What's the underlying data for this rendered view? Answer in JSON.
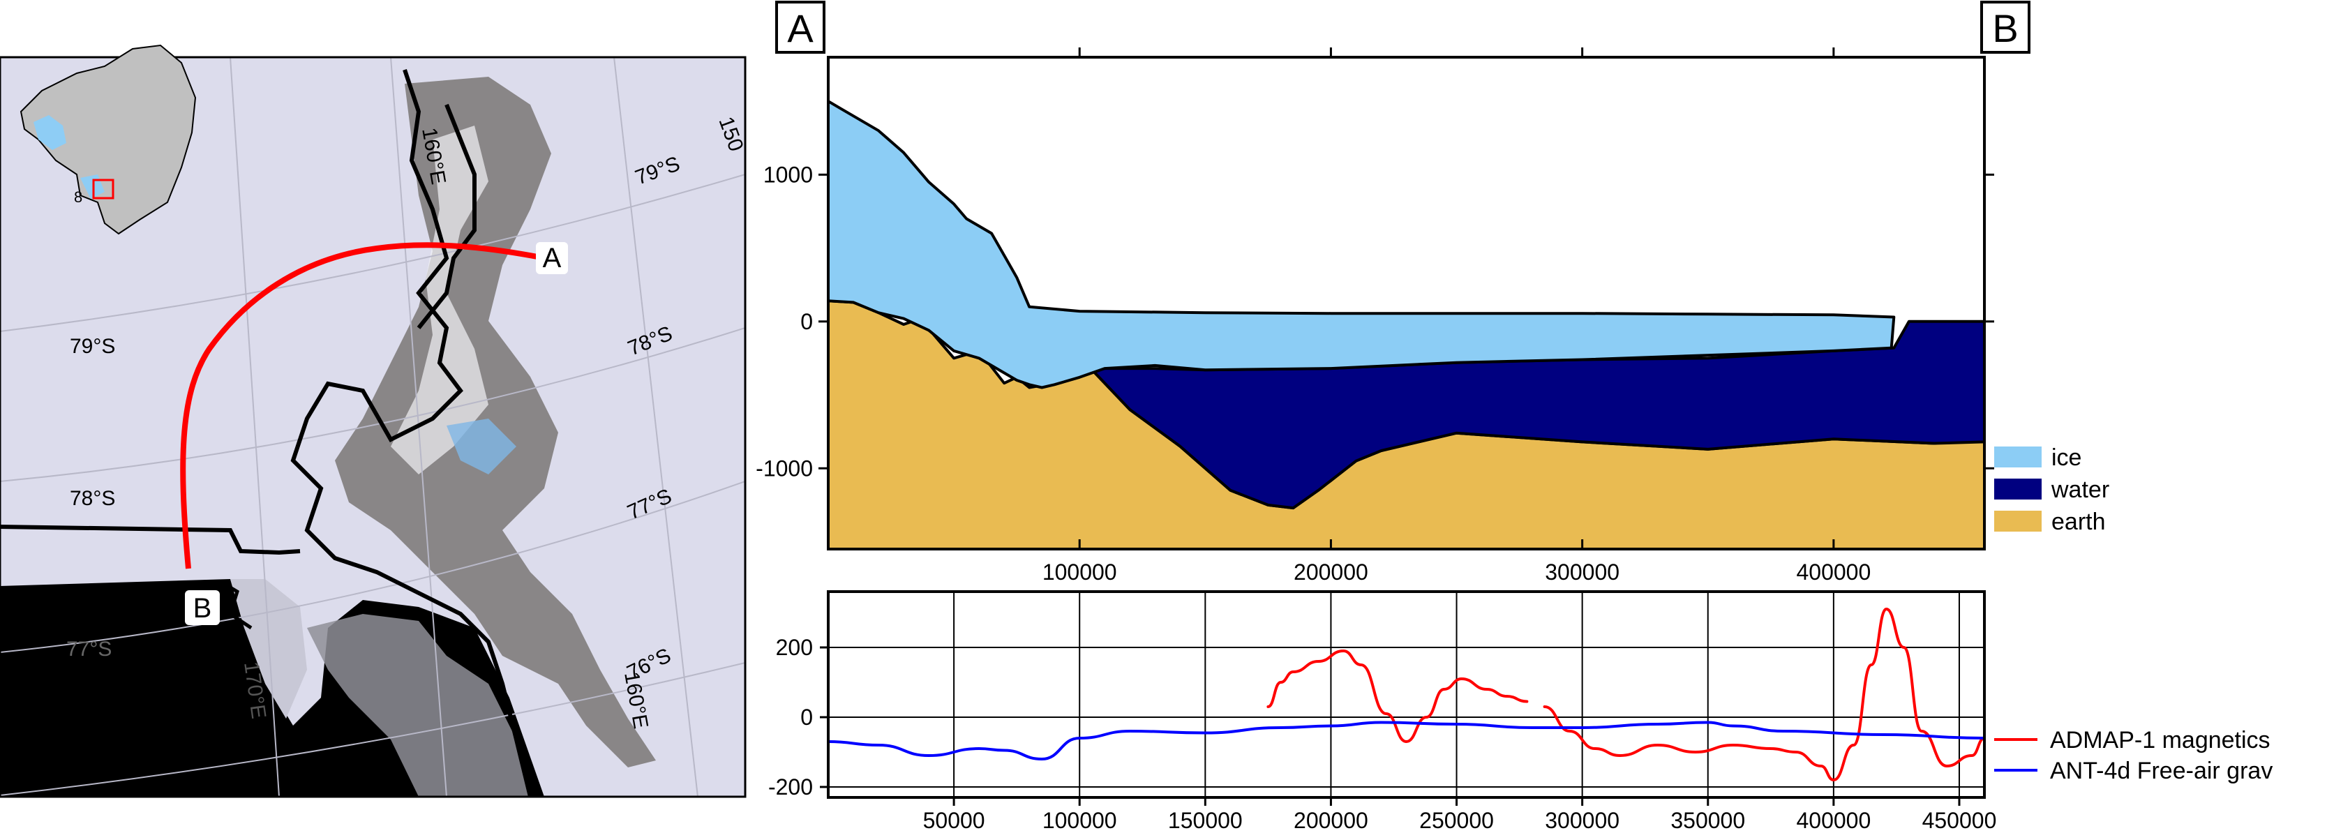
{
  "map": {
    "point_a": "A",
    "point_b": "B",
    "lat_labels": [
      "79°S",
      "78°S",
      "77°S",
      "79°S",
      "78°S",
      "77°S",
      "76°S"
    ],
    "lon_labels": [
      "160°E",
      "170°E",
      "160°E",
      "150"
    ],
    "inset_label": "8",
    "colors": {
      "profile_line": "#ff0000",
      "inset_box": "#ff0000",
      "ocean": "#000000",
      "ice": "#dcdcec",
      "coast": "#000000",
      "inset_land": "#c0c0c0",
      "inset_water": "#8ecdf5"
    }
  },
  "profile": {
    "end_label_left": "A",
    "end_label_right": "B"
  },
  "chart_data": [
    {
      "type": "area",
      "xlim": [
        0,
        460000
      ],
      "ylim": [
        -1550,
        1800
      ],
      "x_ticks": [
        "100000",
        "200000",
        "300000",
        "400000"
      ],
      "y_ticks": [
        "1000",
        "0",
        "-1000"
      ],
      "series": [
        {
          "name": "ice",
          "color": "#8ccdf5",
          "x": [
            0,
            5000,
            20000,
            30000,
            40000,
            50000,
            55000,
            65000,
            70000,
            75000,
            80000,
            100000,
            150000,
            200000,
            250000,
            300000,
            350000,
            400000,
            424000,
            423000,
            400000,
            300000,
            250000,
            200000,
            150000,
            130000,
            110000,
            100000,
            90000,
            85000,
            80000,
            75000,
            70000,
            60000,
            50000,
            40000,
            30000,
            20000,
            10000,
            0
          ],
          "y": [
            1500,
            1450,
            1300,
            1150,
            950,
            800,
            700,
            600,
            450,
            300,
            100,
            70,
            60,
            55,
            55,
            55,
            50,
            45,
            30,
            -180,
            -200,
            -260,
            -280,
            -320,
            -330,
            -300,
            -320,
            -380,
            -430,
            -450,
            -430,
            -400,
            -350,
            -250,
            -200,
            -60,
            20,
            60,
            130,
            140
          ]
        },
        {
          "name": "water",
          "color": "#000080",
          "x": [
            105000,
            130000,
            150000,
            200000,
            250000,
            300000,
            350000,
            400000,
            424000,
            430000,
            460000,
            460000,
            440000,
            400000,
            350000,
            300000,
            250000,
            220000,
            210000,
            195000,
            185000,
            175000,
            160000,
            140000,
            120000,
            105000
          ],
          "y": [
            -320,
            -320,
            -330,
            -320,
            -280,
            -260,
            -250,
            -200,
            -180,
            0,
            0,
            -820,
            -830,
            -800,
            -870,
            -820,
            -760,
            -880,
            -950,
            -1150,
            -1270,
            -1250,
            -1150,
            -850,
            -600,
            -330
          ]
        },
        {
          "name": "earth",
          "color": "#e9bb52",
          "x": [
            0,
            10000,
            20000,
            30000,
            35000,
            40000,
            45000,
            50000,
            60000,
            70000,
            75000,
            80000,
            90000,
            105000,
            120000,
            140000,
            160000,
            175000,
            185000,
            195000,
            210000,
            220000,
            250000,
            300000,
            350000,
            400000,
            440000,
            460000,
            460000,
            0
          ],
          "y": [
            140,
            130,
            60,
            -20,
            10,
            -50,
            -150,
            -250,
            -200,
            -420,
            -380,
            -450,
            -420,
            -330,
            -600,
            -850,
            -1150,
            -1250,
            -1270,
            -1150,
            -950,
            -880,
            -760,
            -820,
            -870,
            -800,
            -830,
            -790,
            -1550,
            -1550
          ]
        }
      ]
    },
    {
      "type": "line",
      "xlim": [
        0,
        460000
      ],
      "ylim": [
        -230,
        360
      ],
      "x_ticks": [
        "50000",
        "100000",
        "150000",
        "200000",
        "250000",
        "300000",
        "350000",
        "400000",
        "450000"
      ],
      "y_ticks": [
        "200",
        "0",
        "-200"
      ],
      "series": [
        {
          "name": "ADMAP-1 magnetics",
          "color": "#ff0000",
          "segments": [
            {
              "x": [
                175000,
                180000,
                185000,
                195000,
                205000,
                212000,
                222000,
                230000,
                238000,
                245000,
                252000,
                262000,
                270000,
                278000
              ],
              "y": [
                30,
                100,
                130,
                160,
                190,
                150,
                10,
                -70,
                0,
                80,
                110,
                80,
                60,
                45
              ]
            },
            {
              "x": [
                285000,
                295000,
                305000,
                315000,
                330000,
                345000,
                360000,
                375000,
                385000,
                395000,
                400000,
                408000,
                415000,
                421000,
                428000,
                435000,
                445000,
                455000,
                460000
              ],
              "y": [
                30,
                -40,
                -90,
                -110,
                -80,
                -100,
                -80,
                -90,
                -100,
                -140,
                -180,
                -80,
                150,
                310,
                200,
                -40,
                -140,
                -110,
                -60
              ]
            }
          ]
        },
        {
          "name": "ANT-4d Free-air grav",
          "color": "#0000ff",
          "segments": [
            {
              "x": [
                0,
                20000,
                40000,
                60000,
                70000,
                85000,
                100000,
                120000,
                150000,
                180000,
                200000,
                220000,
                250000,
                280000,
                300000,
                330000,
                350000,
                360000,
                380000,
                420000,
                460000
              ],
              "y": [
                -70,
                -80,
                -110,
                -90,
                -95,
                -120,
                -60,
                -40,
                -45,
                -30,
                -25,
                -15,
                -20,
                -30,
                -30,
                -20,
                -15,
                -25,
                -40,
                -50,
                -60
              ]
            }
          ]
        }
      ]
    }
  ]
}
